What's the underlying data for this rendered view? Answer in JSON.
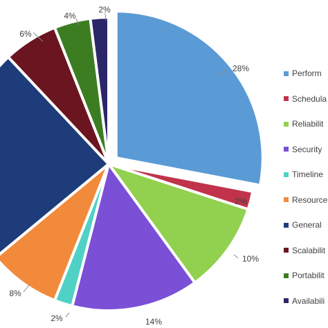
{
  "chart_data": {
    "type": "pie",
    "slices": [
      {
        "name": "Performance",
        "value": 28,
        "label": "28%",
        "color": "#5b9bd5"
      },
      {
        "name": "Schedulability",
        "value": 2,
        "label": "2%",
        "color": "#c0334a"
      },
      {
        "name": "Reliability",
        "value": 10,
        "label": "10%",
        "color": "#92d050"
      },
      {
        "name": "Security",
        "value": 14,
        "label": "14%",
        "color": "#7b4fd6"
      },
      {
        "name": "Timeliness",
        "value": 2,
        "label": "2%",
        "color": "#4fd1c5"
      },
      {
        "name": "Resource",
        "value": 8,
        "label": "8%",
        "color": "#f28a3c"
      },
      {
        "name": "General",
        "value": 24,
        "label": "",
        "color": "#1f3c7a"
      },
      {
        "name": "Scalability",
        "value": 6,
        "label": "6%",
        "color": "#6b1520"
      },
      {
        "name": "Portability",
        "value": 4,
        "label": "4%",
        "color": "#3c7d22"
      },
      {
        "name": "Availability",
        "value": 2,
        "label": "2%",
        "color": "#2b2668"
      }
    ],
    "legend": {
      "position": "right",
      "entries": [
        "Perform",
        "Schedula",
        "Reliabilit",
        "Security",
        "Timeline",
        "Resource",
        "General",
        "Scalabilit",
        "Portabilit",
        "Availabili"
      ]
    }
  }
}
